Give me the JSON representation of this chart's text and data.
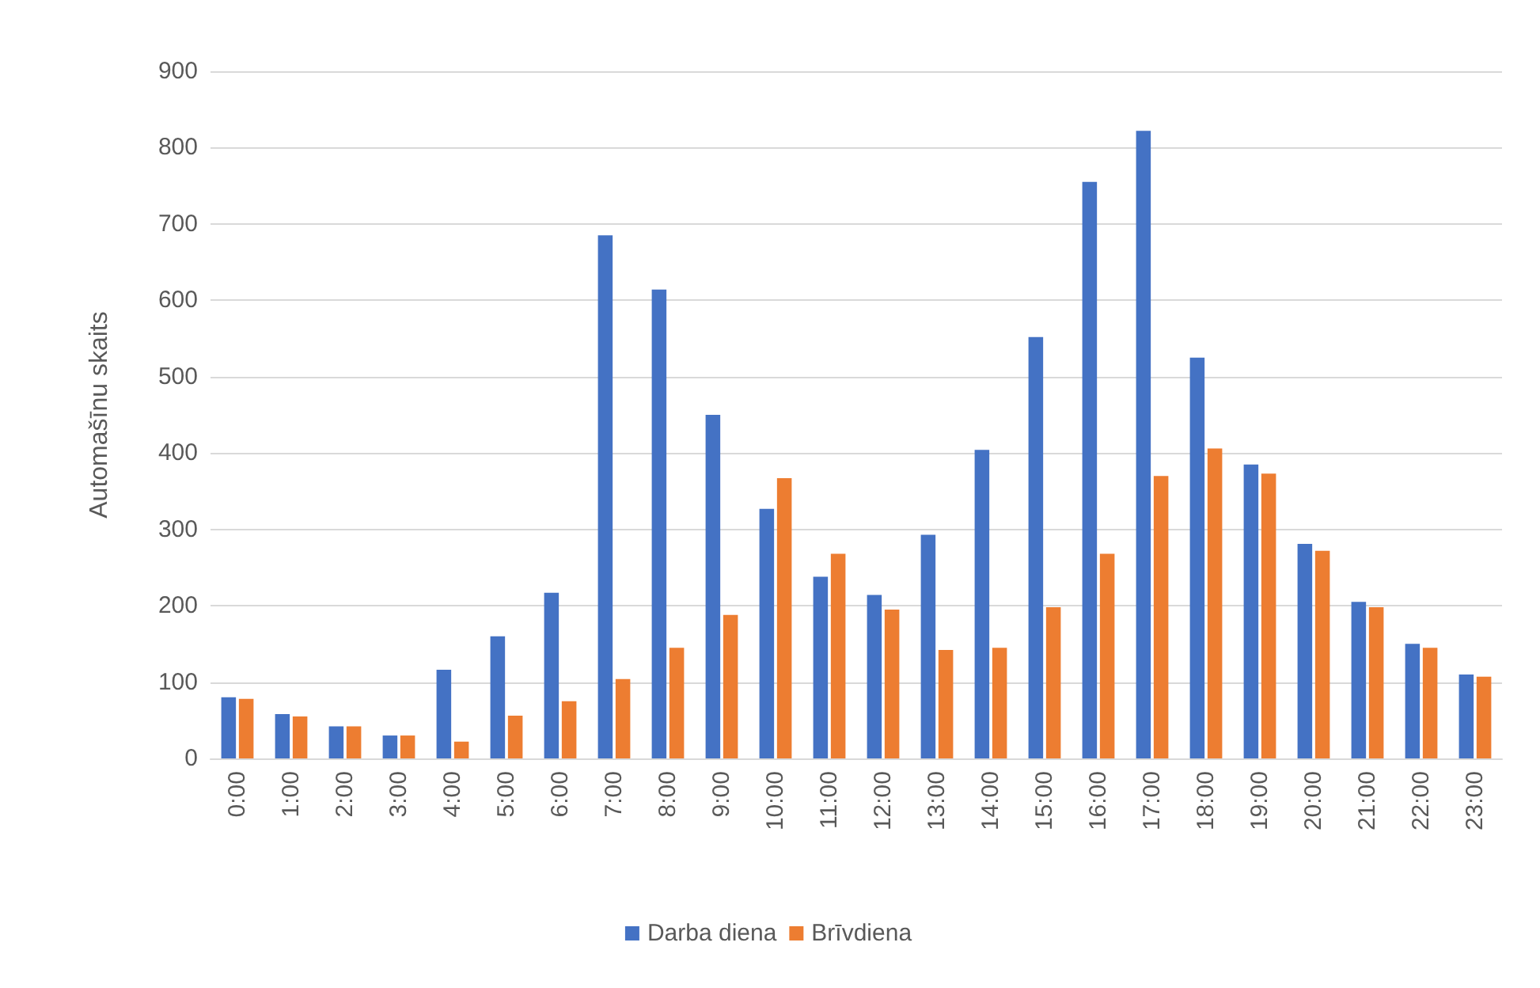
{
  "chart_data": {
    "type": "bar",
    "ylabel": "Automašīnu skaits",
    "categories": [
      "0:00",
      "1:00",
      "2:00",
      "3:00",
      "4:00",
      "5:00",
      "6:00",
      "7:00",
      "8:00",
      "9:00",
      "10:00",
      "11:00",
      "12:00",
      "13:00",
      "14:00",
      "15:00",
      "16:00",
      "17:00",
      "18:00",
      "19:00",
      "20:00",
      "21:00",
      "22:00",
      "23:00"
    ],
    "series": [
      {
        "name": "Darba diena",
        "color": "#4472c4",
        "values": [
          80,
          58,
          42,
          30,
          116,
          160,
          217,
          685,
          614,
          450,
          327,
          238,
          214,
          293,
          404,
          552,
          755,
          822,
          525,
          385,
          281,
          205,
          150,
          110
        ]
      },
      {
        "name": "Brīvdiena",
        "color": "#ed7d31",
        "values": [
          78,
          55,
          42,
          30,
          22,
          56,
          75,
          104,
          145,
          188,
          367,
          268,
          195,
          142,
          145,
          198,
          268,
          370,
          406,
          373,
          272,
          198,
          145,
          107
        ]
      }
    ],
    "ylim": [
      0,
      900
    ],
    "yticks": [
      0,
      100,
      200,
      300,
      400,
      500,
      600,
      700,
      800,
      900
    ],
    "grid": "y",
    "legend": "bottom"
  }
}
